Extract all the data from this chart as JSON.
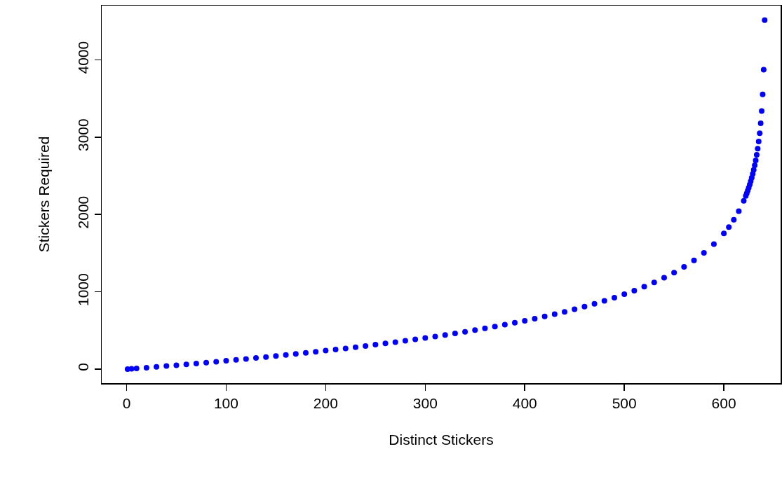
{
  "chart_data": {
    "type": "scatter",
    "xlabel": "Distinct Stickers",
    "ylabel": "Stickers Required",
    "x": [
      1,
      5,
      10,
      20,
      30,
      40,
      50,
      60,
      70,
      80,
      90,
      100,
      110,
      120,
      130,
      140,
      150,
      160,
      170,
      180,
      190,
      200,
      210,
      220,
      230,
      240,
      250,
      260,
      270,
      280,
      290,
      300,
      310,
      320,
      330,
      340,
      350,
      360,
      370,
      380,
      390,
      400,
      410,
      420,
      430,
      440,
      450,
      460,
      470,
      480,
      490,
      500,
      510,
      520,
      530,
      540,
      550,
      560,
      570,
      580,
      590,
      600,
      605,
      610,
      615,
      620,
      622,
      623,
      624,
      625,
      626,
      627,
      628,
      629,
      630,
      631,
      632,
      633,
      634,
      635,
      636,
      637,
      638,
      639,
      640,
      641
    ],
    "series": [
      {
        "color": "#0000ff",
        "values": [
          1,
          5,
          10,
          20,
          31,
          41,
          52,
          63,
          74,
          85,
          97,
          109,
          121,
          133,
          145,
          158,
          171,
          184,
          197,
          211,
          225,
          240,
          254,
          269,
          285,
          300,
          317,
          333,
          350,
          368,
          386,
          404,
          423,
          443,
          463,
          484,
          506,
          528,
          551,
          575,
          600,
          626,
          653,
          682,
          711,
          742,
          775,
          809,
          846,
          884,
          925,
          969,
          1016,
          1067,
          1122,
          1182,
          1248,
          1323,
          1406,
          1503,
          1617,
          1755,
          1837,
          1932,
          2043,
          2177,
          2239,
          2273,
          2309,
          2346,
          2386,
          2429,
          2475,
          2524,
          2578,
          2636,
          2700,
          2771,
          2851,
          2943,
          3050,
          3178,
          3338,
          3552,
          3872,
          4513
        ]
      }
    ],
    "xlim": [
      -25,
      657
    ],
    "xticks": [
      0,
      100,
      200,
      300,
      400,
      500,
      600
    ],
    "ylim": [
      -180,
      4700
    ],
    "yticks": [
      0,
      1000,
      2000,
      3000,
      4000
    ],
    "grid": false,
    "marker": "circle"
  }
}
